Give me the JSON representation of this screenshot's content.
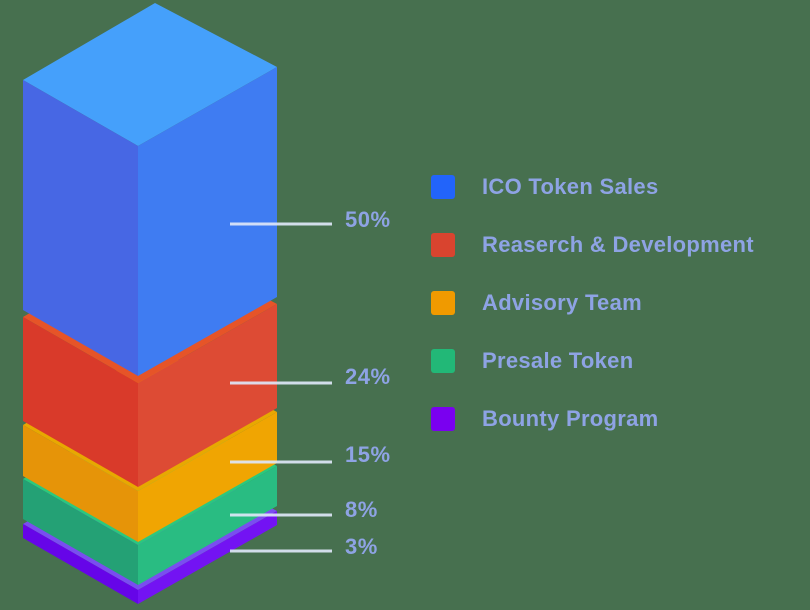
{
  "background_color": "#47704F",
  "text_color": "#8EA3E4",
  "leader_line_color": "#DEE7F8",
  "chart_data": {
    "type": "bar",
    "variant": "isometric-3d-stacked",
    "title": "",
    "units": "%",
    "total": 100,
    "legend_position": "right",
    "grid": false,
    "segments": [
      {
        "label": "ICO Token Sales",
        "value": 50,
        "value_label": "50%",
        "color": "#2264FA",
        "face_left": "#4767E4",
        "face_right": "#3F7CF2",
        "face_top": "#45A0FB"
      },
      {
        "label": "Reaserch & Development",
        "value": 24,
        "value_label": "24%",
        "color": "#D9442F",
        "face_left": "#D93A2A",
        "face_right": "#DD4B34",
        "face_top": "#E65428"
      },
      {
        "label": "Advisory Team",
        "value": 15,
        "value_label": "15%",
        "color": "#F09A00",
        "face_left": "#E69408",
        "face_right": "#F0A502",
        "face_top": "#E8A801"
      },
      {
        "label": "Presale Token",
        "value": 8,
        "value_label": "8%",
        "color": "#22B877",
        "face_left": "#24A175",
        "face_right": "#29BC82",
        "face_top": "#2BC87D"
      },
      {
        "label": "Bounty Program",
        "value": 3,
        "value_label": "3%",
        "color": "#7A00F0",
        "face_left": "#6605E8",
        "face_right": "#7313F3",
        "face_top": "#7A4DF0"
      }
    ]
  }
}
